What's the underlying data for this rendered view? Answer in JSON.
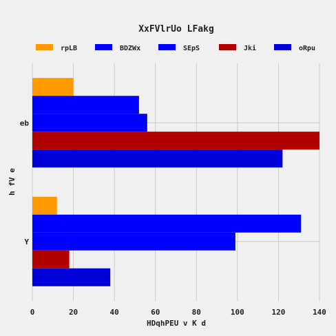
{
  "chart_data": {
    "type": "bar",
    "orientation": "horizontal",
    "title": "XxFVlrUo LFakg",
    "xlabel": "HDqhPEU v K d",
    "ylabel": "h fV e",
    "categories": [
      "eb",
      "Y"
    ],
    "xlim": [
      0,
      140
    ],
    "xticks": [
      0,
      20,
      40,
      60,
      80,
      100,
      120,
      140
    ],
    "grid": true,
    "legend_position": "top",
    "series": [
      {
        "name": "rpLB",
        "color": "#ff9900",
        "values": [
          20,
          12
        ]
      },
      {
        "name": "BDZWx",
        "color": "#0000ff",
        "values": [
          52,
          131
        ]
      },
      {
        "name": "SEpS",
        "color": "#0000ff",
        "values": [
          56,
          99
        ]
      },
      {
        "name": "Jki",
        "color": "#b00000",
        "values": [
          140,
          18
        ]
      },
      {
        "name": "oRpu",
        "color": "#0000d8",
        "values": [
          122,
          38
        ]
      }
    ]
  }
}
